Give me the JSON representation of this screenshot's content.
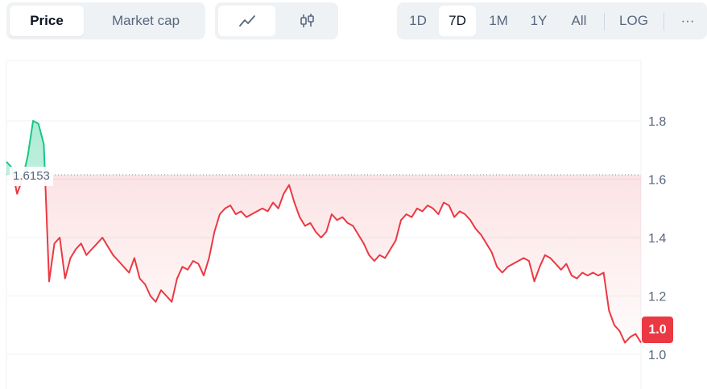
{
  "tabs": {
    "metric": [
      {
        "label": "Price",
        "active": true
      },
      {
        "label": "Market cap",
        "active": false
      }
    ],
    "chart_types": [
      {
        "icon": "line-chart-icon",
        "active": true
      },
      {
        "icon": "candlestick-icon",
        "active": false
      }
    ],
    "ranges": [
      {
        "label": "1D",
        "active": false
      },
      {
        "label": "7D",
        "active": true
      },
      {
        "label": "1M",
        "active": false
      },
      {
        "label": "1Y",
        "active": false
      },
      {
        "label": "All",
        "active": false
      }
    ],
    "log_label": "LOG",
    "more_label": "···"
  },
  "colors": {
    "up": "#16c784",
    "down": "#ea3943",
    "grid": "#eff2f5",
    "axis_text": "#58667e"
  },
  "chart_data": {
    "type": "line",
    "title": "",
    "xlabel": "",
    "ylabel": "",
    "ylim": [
      0.98,
      2.0
    ],
    "yticks": [
      1.0,
      1.2,
      1.4,
      1.6,
      1.8
    ],
    "ytick_labels": [
      "1.0",
      "1.2",
      "1.4",
      "1.6",
      "1.8"
    ],
    "reference_price": 1.6153,
    "reference_label": "1.6153",
    "current_price_label": "1.0",
    "grid": true,
    "x": [
      0,
      1,
      2,
      3,
      4,
      5,
      6,
      7,
      8,
      9,
      10,
      11,
      12,
      13,
      14,
      15,
      16,
      17,
      18,
      19,
      20,
      21,
      22,
      23,
      24,
      25,
      26,
      27,
      28,
      29,
      30,
      31,
      32,
      33,
      34,
      35,
      36,
      37,
      38,
      39,
      40,
      41,
      42,
      43,
      44,
      45,
      46,
      47,
      48,
      49,
      50,
      51,
      52,
      53,
      54,
      55,
      56,
      57,
      58,
      59,
      60,
      61,
      62,
      63,
      64,
      65,
      66,
      67,
      68,
      69,
      70,
      71,
      72,
      73,
      74,
      75,
      76,
      77,
      78,
      79,
      80,
      81,
      82,
      83,
      84,
      85,
      86,
      87,
      88,
      89,
      90,
      91,
      92,
      93,
      94,
      95,
      96,
      97,
      98,
      99,
      100,
      101,
      102,
      103,
      104,
      105,
      106,
      107,
      108,
      109,
      110,
      111,
      112,
      113,
      114,
      115,
      116,
      117,
      118,
      119
    ],
    "values": [
      1.66,
      1.64,
      1.55,
      1.6,
      1.68,
      1.8,
      1.79,
      1.72,
      1.25,
      1.38,
      1.4,
      1.26,
      1.33,
      1.36,
      1.38,
      1.34,
      1.36,
      1.38,
      1.4,
      1.37,
      1.34,
      1.32,
      1.3,
      1.28,
      1.33,
      1.26,
      1.24,
      1.2,
      1.18,
      1.22,
      1.2,
      1.18,
      1.26,
      1.3,
      1.29,
      1.32,
      1.31,
      1.27,
      1.33,
      1.42,
      1.48,
      1.5,
      1.51,
      1.48,
      1.49,
      1.47,
      1.48,
      1.49,
      1.5,
      1.49,
      1.52,
      1.5,
      1.55,
      1.58,
      1.52,
      1.47,
      1.44,
      1.45,
      1.42,
      1.4,
      1.42,
      1.48,
      1.46,
      1.47,
      1.45,
      1.44,
      1.41,
      1.38,
      1.34,
      1.32,
      1.34,
      1.33,
      1.36,
      1.39,
      1.46,
      1.48,
      1.47,
      1.5,
      1.49,
      1.51,
      1.5,
      1.48,
      1.52,
      1.51,
      1.47,
      1.49,
      1.48,
      1.46,
      1.43,
      1.41,
      1.38,
      1.35,
      1.3,
      1.28,
      1.3,
      1.31,
      1.32,
      1.33,
      1.32,
      1.25,
      1.3,
      1.34,
      1.33,
      1.31,
      1.29,
      1.31,
      1.27,
      1.26,
      1.28,
      1.27,
      1.28,
      1.27,
      1.28,
      1.15,
      1.1,
      1.08,
      1.04,
      1.06,
      1.07,
      1.04
    ]
  }
}
